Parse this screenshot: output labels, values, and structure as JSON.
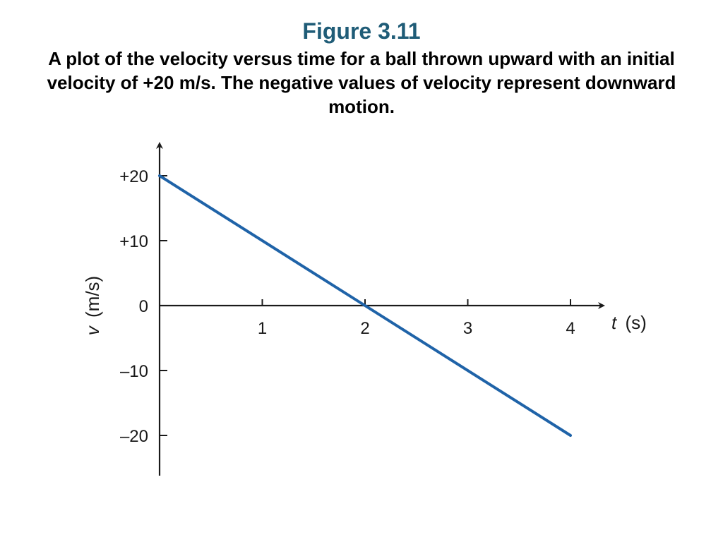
{
  "figure": {
    "title": "Figure 3.11",
    "caption": "A plot of the velocity versus time for a ball thrown upward with an initial velocity of +20 m/s. The negative values of velocity represent downward motion."
  },
  "colors": {
    "title": "#1f5c77",
    "series": "#1f63a8",
    "axis": "#1a1a1a"
  },
  "chart_data": {
    "type": "line",
    "title": "",
    "xlabel_var": "t",
    "xlabel_unit": "(s)",
    "ylabel_var": "v",
    "ylabel_unit": "(m/s)",
    "xlim": [
      0,
      4.3
    ],
    "ylim": [
      -26,
      26
    ],
    "x_ticks": [
      1,
      2,
      3,
      4
    ],
    "x_tick_labels": [
      "1",
      "2",
      "3",
      "4"
    ],
    "y_ticks": [
      20,
      10,
      0,
      -10,
      -20
    ],
    "y_tick_labels": [
      "+20",
      "+10",
      "0",
      "–10",
      "–20"
    ],
    "grid": false,
    "legend": "none",
    "series": [
      {
        "x": [
          0,
          4
        ],
        "y": [
          20,
          -20
        ]
      }
    ]
  }
}
